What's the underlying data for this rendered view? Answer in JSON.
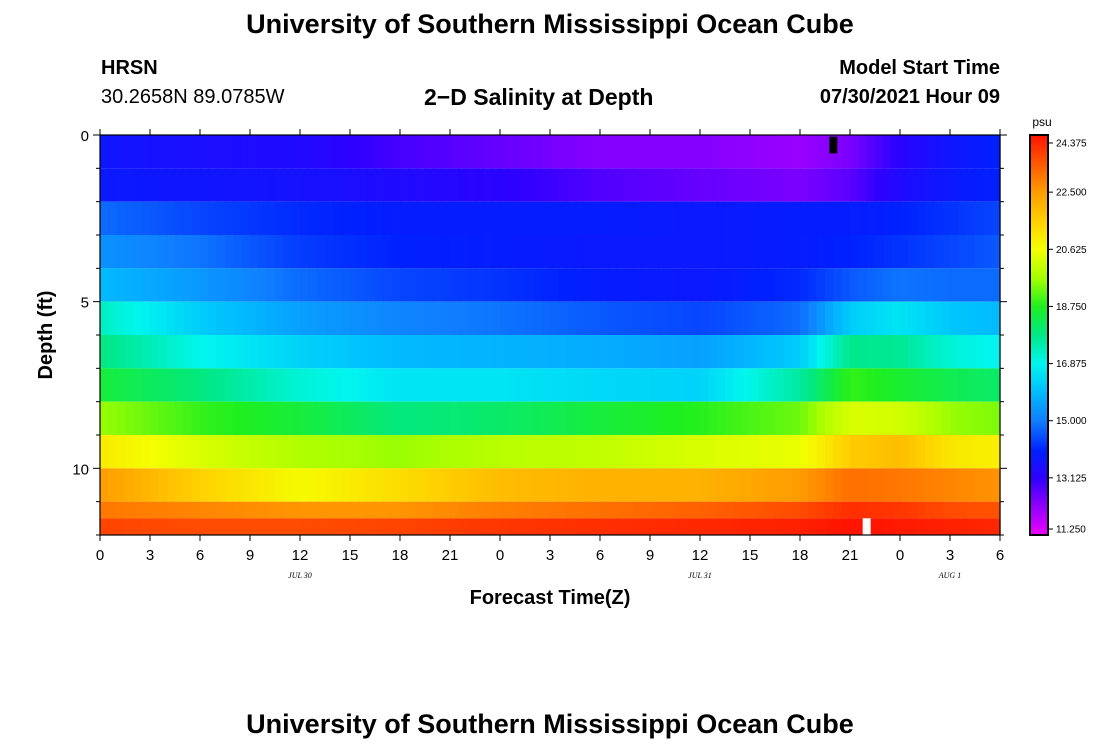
{
  "header": {
    "title": "University of Southern Mississippi Ocean Cube",
    "station": "HRSN",
    "coordinates": "30.2658N  89.0785W",
    "subtitle": "2−D Salinity at Depth",
    "model_start_label": "Model Start Time",
    "model_start_value": "07/30/2021 Hour 09"
  },
  "footer": {
    "title": "University of Southern Mississippi Ocean Cube"
  },
  "chart_data": {
    "type": "heatmap",
    "title": "2−D Salinity at Depth",
    "xlabel": "Forecast Time(Z)",
    "ylabel": "Depth (ft)",
    "x_range_hours": [
      0,
      54
    ],
    "x_ticks": [
      {
        "hour": 0,
        "label": "0"
      },
      {
        "hour": 3,
        "label": "3"
      },
      {
        "hour": 6,
        "label": "6"
      },
      {
        "hour": 9,
        "label": "9"
      },
      {
        "hour": 12,
        "label": "12"
      },
      {
        "hour": 15,
        "label": "15"
      },
      {
        "hour": 18,
        "label": "18"
      },
      {
        "hour": 21,
        "label": "21"
      },
      {
        "hour": 24,
        "label": "0"
      },
      {
        "hour": 27,
        "label": "3"
      },
      {
        "hour": 30,
        "label": "6"
      },
      {
        "hour": 33,
        "label": "9"
      },
      {
        "hour": 36,
        "label": "12"
      },
      {
        "hour": 39,
        "label": "15"
      },
      {
        "hour": 42,
        "label": "18"
      },
      {
        "hour": 45,
        "label": "21"
      },
      {
        "hour": 48,
        "label": "0"
      },
      {
        "hour": 51,
        "label": "3"
      },
      {
        "hour": 54,
        "label": "6"
      }
    ],
    "date_labels": [
      {
        "hour": 12,
        "label": "JUL 30"
      },
      {
        "hour": 36,
        "label": "JUL 31"
      },
      {
        "hour": 51,
        "label": "AUG 1"
      }
    ],
    "ylim": [
      12,
      0
    ],
    "y_ticks": [
      0,
      5,
      10
    ],
    "depth_bins": [
      0,
      1,
      2,
      3,
      4,
      5,
      6,
      7,
      8,
      9,
      10,
      11,
      11.5
    ],
    "colorbar": {
      "unit": "psu",
      "min": 11.25,
      "max": 24.375,
      "tick_labels": [
        "24.375",
        "22.500",
        "20.625",
        "18.750",
        "16.875",
        "15.000",
        "13.125",
        "11.250"
      ],
      "stops": [
        {
          "value": 11.25,
          "color": "#ee00ff"
        },
        {
          "value": 12.2,
          "color": "#9000ff"
        },
        {
          "value": 13.125,
          "color": "#2e00ff"
        },
        {
          "value": 14.0,
          "color": "#0020ff"
        },
        {
          "value": 15.0,
          "color": "#0f7eff"
        },
        {
          "value": 16.0,
          "color": "#00c0ff"
        },
        {
          "value": 16.875,
          "color": "#00f6ee"
        },
        {
          "value": 17.8,
          "color": "#00e88a"
        },
        {
          "value": 18.75,
          "color": "#1fef1f"
        },
        {
          "value": 19.7,
          "color": "#a8ff00"
        },
        {
          "value": 20.625,
          "color": "#f4ff00"
        },
        {
          "value": 21.5,
          "color": "#ffd200"
        },
        {
          "value": 22.5,
          "color": "#ff9c00"
        },
        {
          "value": 23.4,
          "color": "#ff5a00"
        },
        {
          "value": 24.375,
          "color": "#ff1400"
        }
      ]
    },
    "series": [
      {
        "name": "0-1 ft",
        "hours": [
          0,
          6,
          12,
          18,
          24,
          30,
          36,
          42,
          45,
          48,
          51,
          54
        ],
        "values": [
          13.7,
          13.5,
          13.4,
          12.9,
          12.6,
          12.3,
          12.3,
          12.1,
          12.4,
          13.2,
          13.7,
          14.0
        ]
      },
      {
        "name": "1-2 ft",
        "hours": [
          0,
          6,
          12,
          18,
          24,
          30,
          36,
          42,
          45,
          48,
          51,
          54
        ],
        "values": [
          13.8,
          13.7,
          13.6,
          13.4,
          13.2,
          12.8,
          12.6,
          12.4,
          12.7,
          13.4,
          13.8,
          14.0
        ]
      },
      {
        "name": "2-3 ft",
        "hours": [
          0,
          6,
          12,
          18,
          24,
          30,
          36,
          42,
          45,
          48,
          51,
          54
        ],
        "values": [
          14.8,
          14.4,
          14.1,
          13.9,
          13.9,
          13.9,
          13.8,
          13.9,
          13.9,
          14.0,
          14.2,
          14.4
        ]
      },
      {
        "name": "3-4 ft",
        "hours": [
          0,
          6,
          12,
          18,
          24,
          30,
          36,
          42,
          45,
          48,
          51,
          54
        ],
        "values": [
          15.3,
          14.9,
          14.3,
          14.0,
          13.9,
          13.8,
          13.8,
          13.9,
          14.0,
          14.2,
          14.4,
          14.6
        ]
      },
      {
        "name": "4-5 ft",
        "hours": [
          0,
          6,
          12,
          18,
          24,
          30,
          36,
          42,
          45,
          48,
          51,
          54
        ],
        "values": [
          15.9,
          15.4,
          14.8,
          14.4,
          14.2,
          13.9,
          13.8,
          14.1,
          14.6,
          14.9,
          14.8,
          14.8
        ]
      },
      {
        "name": "5-6 ft",
        "hours": [
          0,
          6,
          12,
          18,
          24,
          30,
          36,
          42,
          45,
          48,
          51,
          54
        ],
        "values": [
          17.3,
          16.2,
          15.5,
          15.1,
          14.9,
          14.6,
          14.4,
          14.8,
          16.2,
          16.6,
          16.1,
          15.9
        ]
      },
      {
        "name": "6-7 ft",
        "hours": [
          0,
          6,
          12,
          18,
          24,
          30,
          36,
          42,
          45,
          48,
          51,
          54
        ],
        "values": [
          17.9,
          16.9,
          16.3,
          15.9,
          15.8,
          15.7,
          15.5,
          16.2,
          17.8,
          17.7,
          17.1,
          16.8
        ]
      },
      {
        "name": "7-8 ft",
        "hours": [
          0,
          6,
          12,
          18,
          24,
          30,
          36,
          42,
          45,
          48,
          51,
          54
        ],
        "values": [
          18.5,
          17.9,
          17.1,
          16.6,
          16.6,
          16.4,
          16.3,
          17.6,
          18.9,
          18.6,
          18.3,
          18.1
        ]
      },
      {
        "name": "8-9 ft",
        "hours": [
          0,
          6,
          12,
          18,
          24,
          30,
          36,
          42,
          45,
          48,
          51,
          54
        ],
        "values": [
          19.6,
          18.9,
          18.5,
          17.9,
          18.1,
          18.5,
          18.8,
          19.3,
          20.3,
          20.2,
          19.6,
          19.4
        ]
      },
      {
        "name": "9-10 ft",
        "hours": [
          0,
          6,
          12,
          18,
          24,
          30,
          36,
          42,
          45,
          48,
          51,
          54
        ],
        "values": [
          21.0,
          20.3,
          19.8,
          19.6,
          19.9,
          20.0,
          20.3,
          20.5,
          21.6,
          21.9,
          21.1,
          20.9
        ]
      },
      {
        "name": "10-11 ft",
        "hours": [
          0,
          6,
          12,
          18,
          24,
          30,
          36,
          42,
          45,
          48,
          51,
          54
        ],
        "values": [
          22.5,
          21.5,
          20.7,
          21.3,
          21.9,
          22.1,
          22.1,
          22.5,
          23.1,
          23.0,
          22.8,
          22.6
        ]
      },
      {
        "name": "11-12 ft",
        "hours": [
          0,
          6,
          12,
          18,
          24,
          30,
          36,
          42,
          45,
          48,
          51,
          54
        ],
        "values": [
          23.0,
          22.8,
          22.6,
          22.6,
          22.9,
          23.1,
          23.3,
          23.6,
          24.0,
          23.9,
          23.6,
          23.5
        ]
      },
      {
        "name": "12 ft",
        "hours": [
          0,
          6,
          12,
          18,
          24,
          30,
          36,
          42,
          45,
          48,
          51,
          54
        ],
        "values": [
          23.7,
          23.6,
          23.6,
          23.7,
          23.9,
          24.0,
          24.1,
          24.2,
          24.4,
          24.3,
          24.2,
          24.1
        ]
      }
    ],
    "markers": [
      {
        "name": "top-marker",
        "hour": 44.0,
        "depth_from": 0.05,
        "depth_to": 0.55,
        "color": "#000000"
      },
      {
        "name": "bottom-marker",
        "hour": 46.0,
        "depth_from": 11.5,
        "depth_to": 12.0,
        "color": "#ffffff"
      }
    ]
  }
}
